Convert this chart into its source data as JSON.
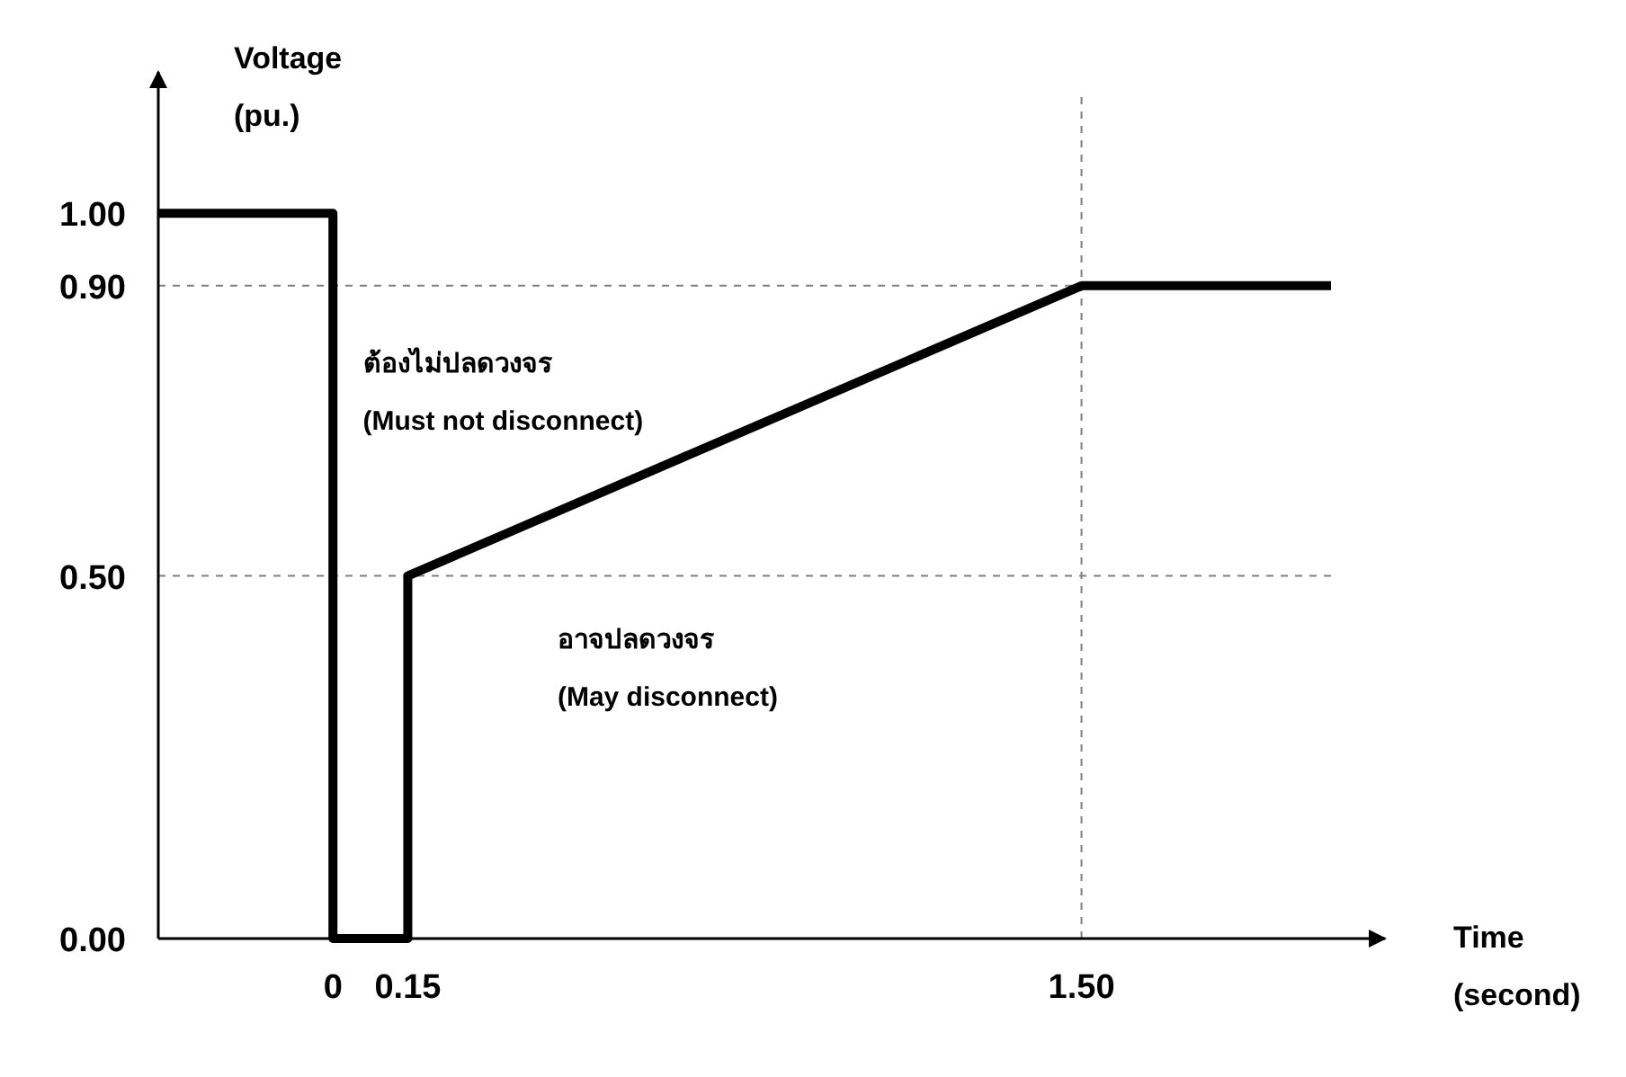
{
  "chart_data": {
    "type": "line",
    "xlabel": "Time (second)",
    "ylabel": "Voltage (pu.)",
    "x": [
      -0.35,
      0,
      0,
      0.15,
      0.15,
      1.5,
      2.0
    ],
    "series": [
      {
        "color": "#000000",
        "values": [
          1,
          1,
          0,
          0,
          0.5,
          0.9,
          0.9
        ]
      }
    ],
    "xlim": [
      -0.35,
      2.0
    ],
    "ylim": [
      0,
      1.17
    ],
    "xticks": [
      0,
      0.15,
      {
        "value": 1.5,
        "label": "1.50"
      }
    ],
    "yticks": [
      {
        "value": 0,
        "label": "0.00"
      },
      {
        "value": 0.5,
        "label": "0.50"
      },
      {
        "value": 0.9,
        "label": "0.90"
      },
      {
        "value": 1,
        "label": "1.00"
      }
    ],
    "ref_lines": [
      {
        "axis": "y",
        "value": 0.9,
        "line_style": "dashed",
        "color": "#808080"
      },
      {
        "axis": "y",
        "value": 0.5,
        "line_style": "dashed",
        "color": "#808080"
      },
      {
        "axis": "x",
        "value": 1.5,
        "line_style": "dashed",
        "color": "#808080"
      }
    ],
    "annotations": [
      "ต้องไม่ปลดวงจร",
      "(Must not disconnect)",
      "อาจปลดวงจร",
      "(May disconnect)"
    ],
    "line_style": "solid"
  }
}
